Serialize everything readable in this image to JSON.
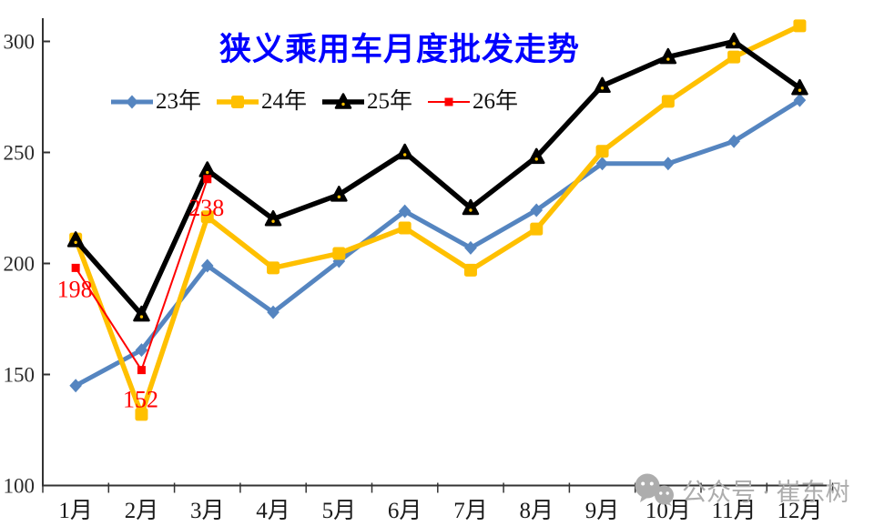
{
  "chart_data": {
    "type": "line",
    "title": "狭义乘用车月度批发走势",
    "xlabel": "",
    "ylabel": "",
    "categories": [
      "1月",
      "2月",
      "3月",
      "4月",
      "5月",
      "6月",
      "7月",
      "8月",
      "9月",
      "10月",
      "11月",
      "12月"
    ],
    "yticks": [
      100,
      150,
      200,
      250,
      300
    ],
    "ylim": [
      100,
      310
    ],
    "grid": false,
    "legend_position": "top",
    "series": [
      {
        "name": "23年",
        "color": "#5585C0",
        "marker": "diamond",
        "line_width": 5,
        "values": [
          145,
          161,
          199,
          178,
          201,
          223.5,
          207,
          224,
          245,
          245,
          255,
          273.5
        ]
      },
      {
        "name": "24年",
        "color": "#FFC000",
        "marker": "square",
        "line_width": 5.5,
        "values": [
          211,
          132,
          221,
          198,
          204.5,
          216,
          197,
          215.5,
          250.5,
          273,
          293,
          307
        ]
      },
      {
        "name": "25年",
        "color": "#000000",
        "marker": "triangle",
        "line_width": 5.5,
        "values": [
          210.5,
          177,
          242,
          220,
          231,
          250,
          225,
          248,
          280,
          293,
          300,
          279
        ]
      },
      {
        "name": "26年",
        "color": "#FF0000",
        "marker": "small-square",
        "line_width": 2,
        "values": [
          198,
          152,
          238,
          null,
          null,
          null,
          null,
          null,
          null,
          null,
          null,
          null
        ]
      }
    ],
    "annotations": [
      {
        "series": "26年",
        "month_index": 0,
        "value": 198,
        "text": "198",
        "dy": 23
      },
      {
        "series": "26年",
        "month_index": 1,
        "value": 152,
        "text": "152",
        "dy": 32
      },
      {
        "series": "26年",
        "month_index": 2,
        "value": 238,
        "text": "238",
        "dy": 31
      }
    ]
  },
  "watermark": {
    "text": "公众号 · 崔东树"
  },
  "colors": {
    "title": "#0000FF",
    "axis": "#333333",
    "y_tick_label": "#2b2b2b",
    "x_tick_label": "#1a1a1a",
    "annotation": "#FF0000",
    "watermark": "#ADADAD",
    "triangle_center_dot": "#FFC000"
  }
}
